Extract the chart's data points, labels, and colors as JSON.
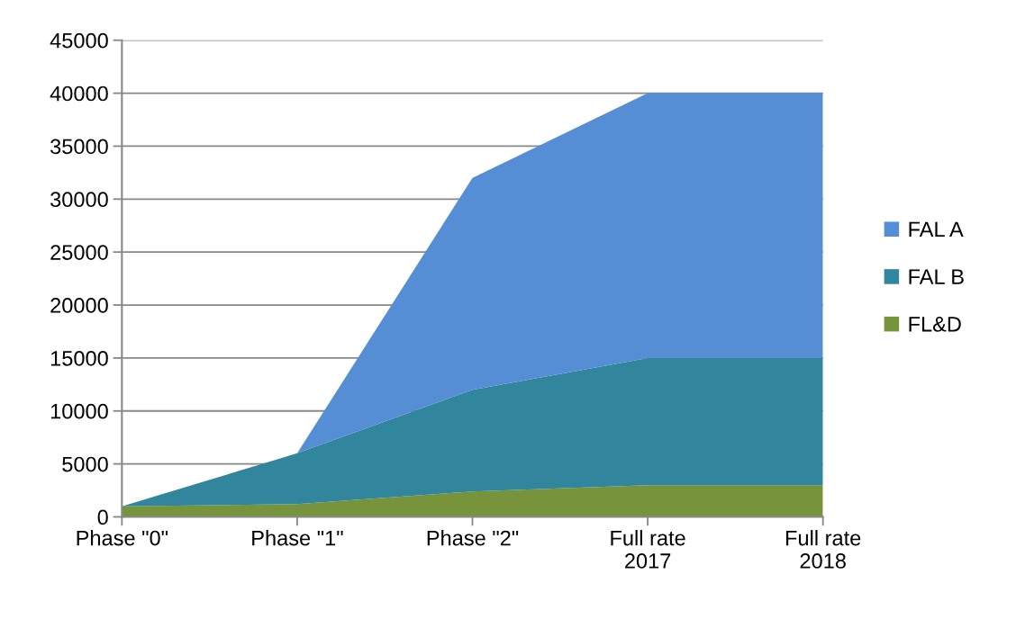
{
  "chart_data": {
    "type": "area",
    "stacked": true,
    "categories": [
      "Phase \"0\"",
      "Phase \"1\"",
      "Phase \"2\"",
      "Full rate\n2017",
      "Full rate\n2018"
    ],
    "series": [
      {
        "name": "FL&D",
        "color": "#77933c",
        "values": [
          1000,
          1200,
          2400,
          3000,
          3000
        ]
      },
      {
        "name": "FAL B",
        "color": "#31859c",
        "values": [
          0,
          4800,
          9600,
          12000,
          12000
        ]
      },
      {
        "name": "FAL A",
        "color": "#558ed5",
        "values": [
          0,
          0,
          20000,
          25000,
          25000
        ]
      }
    ],
    "ylim": [
      0,
      45000
    ],
    "yticks": [
      0,
      5000,
      10000,
      15000,
      20000,
      25000,
      30000,
      35000,
      40000,
      45000
    ],
    "grid": "y",
    "legend": "right"
  }
}
